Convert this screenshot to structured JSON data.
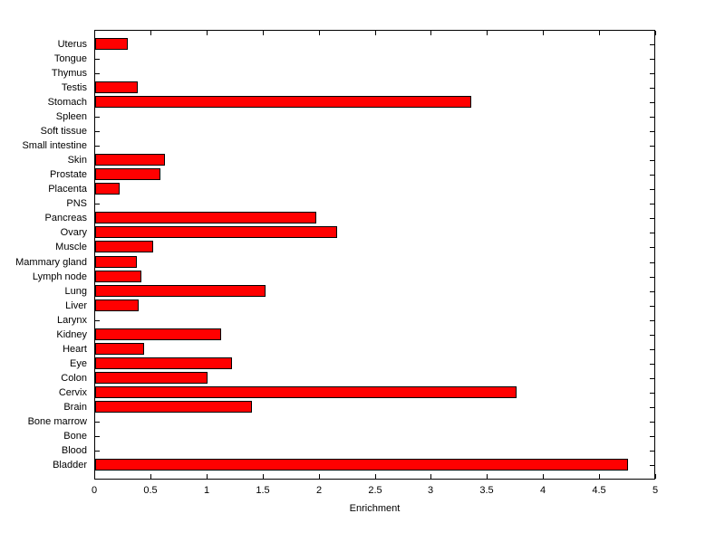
{
  "chart_data": {
    "type": "bar",
    "orientation": "horizontal",
    "title": "",
    "xlabel": "Enrichment",
    "ylabel": "",
    "xlim": [
      0,
      5
    ],
    "xticks": [
      0,
      0.5,
      1,
      1.5,
      2,
      2.5,
      3,
      3.5,
      4,
      4.5,
      5
    ],
    "xtick_labels": [
      "0",
      "0.5",
      "1",
      "1.5",
      "2",
      "2.5",
      "3",
      "3.5",
      "4",
      "4.5",
      "5"
    ],
    "grid": false,
    "legend": "none",
    "bar_color": "#FF0000",
    "bar_edge_color": "#000000",
    "background_color": "#FFFFFF",
    "categories": [
      "Uterus",
      "Tongue",
      "Thymus",
      "Testis",
      "Stomach",
      "Spleen",
      "Soft tissue",
      "Small intestine",
      "Skin",
      "Prostate",
      "Placenta",
      "PNS",
      "Pancreas",
      "Ovary",
      "Muscle",
      "Mammary gland",
      "Lymph node",
      "Lung",
      "Liver",
      "Larynx",
      "Kidney",
      "Heart",
      "Eye",
      "Colon",
      "Cervix",
      "Brain",
      "Bone marrow",
      "Bone",
      "Blood",
      "Bladder"
    ],
    "values": [
      0.29,
      0,
      0,
      0.38,
      3.35,
      0,
      0,
      0,
      0.62,
      0.58,
      0.22,
      0,
      1.97,
      2.16,
      0.52,
      0.37,
      0.41,
      1.52,
      0.39,
      0,
      1.12,
      0.44,
      1.22,
      1.0,
      3.76,
      1.4,
      0,
      0,
      0,
      4.75
    ]
  }
}
